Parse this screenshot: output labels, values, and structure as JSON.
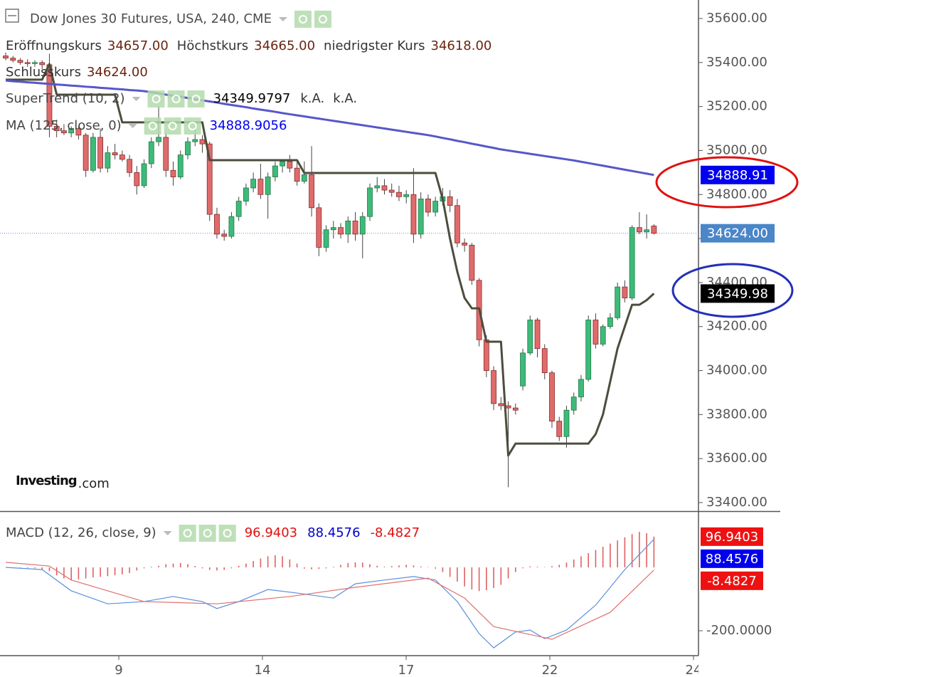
{
  "logo": {
    "text": "Investing",
    "suffix": ".com"
  },
  "chart_data": [
    {
      "type": "candlestick",
      "title": "Dow Jones 30 Futures, USA, 240, CME",
      "up_color": "#3dbb78",
      "down_color": "#e06b6b",
      "last_price_color": "#4a86c8",
      "ohlc_labels": [
        {
          "label": "Eröffnungskurs",
          "value_label": "34657.00"
        },
        {
          "label": "Höchstkurs",
          "value_label": "34665.00"
        },
        {
          "label": "niedrigster Kurs",
          "value_label": "34618.00"
        },
        {
          "label": "Schlusskurs",
          "value_label": "34624.00"
        }
      ],
      "x": [
        0,
        1,
        2,
        3,
        4,
        5,
        6,
        7,
        8,
        9,
        10,
        11,
        12,
        13,
        14,
        15,
        16,
        17,
        18,
        19,
        20,
        21,
        22,
        23,
        24,
        25,
        26,
        27,
        28,
        29,
        30,
        31,
        32,
        33,
        34,
        35,
        36,
        37,
        38,
        39,
        40,
        41,
        42,
        43,
        44,
        45,
        46,
        47,
        48,
        49,
        50,
        51,
        52,
        53,
        54,
        55,
        56,
        57,
        58,
        59,
        60,
        61,
        62,
        63,
        64,
        65,
        66,
        67,
        68,
        69,
        70,
        71,
        72,
        73,
        74,
        75,
        76,
        77,
        78,
        79,
        80,
        81,
        82,
        83,
        84,
        85,
        86,
        87,
        88,
        89
      ],
      "open": [
        35430,
        35420,
        35410,
        35400,
        35395,
        35400,
        35390,
        35110,
        35090,
        35080,
        35100,
        35070,
        34910,
        35060,
        34920,
        34990,
        34980,
        34960,
        34900,
        34840,
        34940,
        35040,
        35060,
        34910,
        34880,
        34980,
        35040,
        35050,
        35030,
        34710,
        34620,
        34610,
        34700,
        34770,
        34830,
        34870,
        34800,
        34880,
        34930,
        34950,
        34920,
        34860,
        34890,
        34740,
        34560,
        34640,
        34650,
        34620,
        34680,
        34620,
        34700,
        34830,
        34840,
        34820,
        34810,
        34790,
        34800,
        34620,
        34780,
        34720,
        34770,
        34790,
        34750,
        34580,
        34570,
        34410,
        34140,
        34000,
        33850,
        33840,
        33830,
        33930,
        34080,
        34230,
        34100,
        33990,
        33770,
        33700,
        33820,
        33880,
        33960,
        34230,
        34120,
        34200,
        34240,
        34380,
        34330,
        34650,
        34630,
        34657
      ],
      "high": [
        35445,
        35430,
        35420,
        35415,
        35410,
        35410,
        35440,
        35140,
        35120,
        35110,
        35110,
        35080,
        35080,
        35100,
        35020,
        35030,
        35000,
        34980,
        34930,
        34960,
        35060,
        35200,
        35080,
        34950,
        35000,
        35060,
        35110,
        35070,
        35040,
        34740,
        34640,
        34720,
        34790,
        34850,
        34900,
        34940,
        34900,
        34950,
        34960,
        34980,
        34950,
        34950,
        35020,
        34760,
        34660,
        34680,
        34670,
        34700,
        34720,
        34720,
        34850,
        34880,
        34870,
        34850,
        34840,
        34820,
        34920,
        34810,
        34800,
        34790,
        34830,
        34820,
        34780,
        34600,
        34580,
        34420,
        34160,
        34020,
        33880,
        33860,
        33850,
        34100,
        34250,
        34240,
        34120,
        34000,
        33790,
        33840,
        33900,
        33980,
        34250,
        34260,
        34210,
        34260,
        34400,
        34410,
        34660,
        34720,
        34710,
        34665
      ],
      "low": [
        35410,
        35400,
        35390,
        35380,
        35380,
        35370,
        35060,
        35060,
        35070,
        35060,
        35050,
        34880,
        34900,
        34900,
        34900,
        34960,
        34950,
        34880,
        34800,
        34830,
        34920,
        35020,
        34880,
        34840,
        34870,
        34960,
        35020,
        34990,
        34680,
        34600,
        34590,
        34600,
        34680,
        34750,
        34810,
        34780,
        34690,
        34860,
        34900,
        34900,
        34840,
        34850,
        34700,
        34520,
        34540,
        34600,
        34600,
        34580,
        34590,
        34510,
        34680,
        34810,
        34800,
        34790,
        34770,
        34760,
        34580,
        34600,
        34700,
        34700,
        34750,
        34720,
        34560,
        34540,
        34390,
        34110,
        33970,
        33820,
        33820,
        33470,
        33800,
        33910,
        34070,
        34060,
        33960,
        33740,
        33680,
        33650,
        33800,
        33860,
        33950,
        34100,
        34110,
        34190,
        34230,
        34310,
        34320,
        34620,
        34600,
        34618
      ],
      "close": [
        35420,
        35410,
        35400,
        35395,
        35400,
        35390,
        35110,
        35090,
        35080,
        35100,
        35070,
        34910,
        35060,
        34920,
        34990,
        34980,
        34960,
        34900,
        34840,
        34940,
        35040,
        35060,
        34910,
        34880,
        34980,
        35040,
        35050,
        35030,
        34710,
        34620,
        34610,
        34700,
        34770,
        34830,
        34870,
        34800,
        34880,
        34930,
        34950,
        34920,
        34860,
        34890,
        34740,
        34560,
        34640,
        34650,
        34620,
        34680,
        34620,
        34700,
        34830,
        34840,
        34820,
        34810,
        34790,
        34800,
        34620,
        34780,
        34720,
        34770,
        34790,
        34750,
        34580,
        34570,
        34410,
        34140,
        34000,
        33850,
        33840,
        33830,
        33820,
        34080,
        34230,
        34100,
        33990,
        33770,
        33700,
        33820,
        33880,
        33960,
        34230,
        34120,
        34200,
        34240,
        34380,
        34330,
        34650,
        34630,
        34640,
        34624
      ],
      "series": [
        {
          "name": "SuperTrend (10, 2)",
          "color": "#4d4d3d",
          "tag_color": "#000000",
          "values": [
            35322,
            35322,
            35322,
            35322,
            35322,
            35322,
            35393,
            35254,
            35254,
            35254,
            35254,
            35254,
            35254,
            35254,
            35254,
            35254,
            35128,
            35128,
            35128,
            35128,
            35128,
            35128,
            35128,
            35128,
            35128,
            35128,
            35128,
            35128,
            34956,
            34956,
            34956,
            34956,
            34956,
            34956,
            34956,
            34956,
            34956,
            34956,
            34956,
            34956,
            34956,
            34898,
            34898,
            34898,
            34898,
            34898,
            34898,
            34898,
            34898,
            34898,
            34898,
            34898,
            34898,
            34898,
            34898,
            34898,
            34898,
            34898,
            34898,
            34898,
            34780,
            34600,
            34450,
            34330,
            34283,
            34283,
            34131,
            34131,
            34131,
            33614,
            33668,
            33668,
            33668,
            33668,
            33668,
            33668,
            33668,
            33668,
            33668,
            33668,
            33668,
            33711,
            33800,
            33950,
            34100,
            34200,
            34299,
            34299,
            34320,
            34349.9797
          ],
          "extra_labels": [
            "k.A.",
            "k.A."
          ],
          "last_label": "34349.98"
        },
        {
          "name": "MA (125, close, 0)",
          "color": "#5757c9",
          "tag_color": "#0000ee",
          "values": [
            35318,
            35315,
            35313,
            35310,
            35308,
            35305,
            35303,
            35300,
            35298,
            35295,
            35293,
            35290,
            35288,
            35285,
            35283,
            35280,
            35278,
            35275,
            35273,
            35270,
            35265,
            35260,
            35254,
            35249,
            35244,
            35239,
            35233,
            35228,
            35223,
            35218,
            35212,
            35207,
            35202,
            35197,
            35191,
            35186,
            35181,
            35176,
            35170,
            35165,
            35160,
            35155,
            35150,
            35145,
            35140,
            35135,
            35130,
            35125,
            35120,
            35115,
            35110,
            35105,
            35100,
            35095,
            35090,
            35085,
            35080,
            35075,
            35070,
            35064,
            35057,
            35051,
            35044,
            35038,
            35031,
            35025,
            35018,
            35012,
            35005,
            35000,
            34995,
            34990,
            34985,
            34980,
            34975,
            34970,
            34965,
            34960,
            34955,
            34949,
            34943,
            34937,
            34931,
            34925,
            34919,
            34913,
            34907,
            34901,
            34895,
            34888.9056
          ],
          "last_label": "34888.91"
        }
      ],
      "xlim": [
        -0.781,
        95.117
      ],
      "xticks": [
        {
          "value": 15.53,
          "label": "9"
        },
        {
          "value": 35.25,
          "label": "14"
        },
        {
          "value": 54.98,
          "label": "17"
        },
        {
          "value": 74.71,
          "label": "22"
        },
        {
          "value": 94.43,
          "label": "24"
        }
      ],
      "ylim": [
        33361.2,
        35684.1
      ],
      "yticks": [
        {
          "value": 35600,
          "label": "35600.00"
        },
        {
          "value": 35400,
          "label": "35400.00"
        },
        {
          "value": 35200,
          "label": "35200.00"
        },
        {
          "value": 35000,
          "label": "35000.00"
        },
        {
          "value": 34800,
          "label": "34800.00"
        },
        {
          "value": 34600,
          "label": "34600.00"
        },
        {
          "value": 34400,
          "label": "34400.00"
        },
        {
          "value": 34200,
          "label": "34200.00"
        },
        {
          "value": 34000,
          "label": "34000.00"
        },
        {
          "value": 33800,
          "label": "33800.00"
        },
        {
          "value": 33600,
          "label": "33600.00"
        },
        {
          "value": 33400,
          "label": "33400.00"
        }
      ]
    },
    {
      "type": "macd",
      "title": "MACD (12, 26, close, 9)",
      "histogram": {
        "color": "#e06060",
        "tag_color": "#ee1111",
        "values": [
          0,
          0,
          -1,
          -2,
          -3,
          -6,
          -12,
          -25,
          -35,
          -40,
          -38,
          -35,
          -32,
          -30,
          -28,
          -25,
          -22,
          -18,
          -10,
          -3,
          2,
          5,
          10,
          12,
          14,
          10,
          4,
          -3,
          -8,
          -10,
          -8,
          -3,
          5,
          12,
          20,
          28,
          35,
          38,
          35,
          25,
          12,
          -4,
          -6,
          -5,
          -3,
          2,
          8,
          14,
          16,
          15,
          10,
          5,
          2,
          4,
          6,
          8,
          6,
          3,
          1,
          -4,
          -15,
          -30,
          -45,
          -60,
          -70,
          -75,
          -72,
          -65,
          -55,
          -35,
          -15,
          -3,
          3,
          2,
          1,
          4,
          8,
          15,
          25,
          35,
          45,
          55,
          65,
          75,
          85,
          95,
          105,
          112,
          108,
          96.9403
        ]
      },
      "series": [
        {
          "color": "#5b8fde",
          "tag_color": "#0000ee",
          "x": [
            0,
            5,
            9,
            14,
            19,
            23,
            27,
            29,
            32,
            36,
            40,
            45,
            48,
            52,
            56,
            59,
            62,
            65,
            67,
            70,
            72,
            74,
            77,
            81,
            85,
            89
          ],
          "values": [
            0,
            -7,
            -74,
            -115,
            -108,
            -92,
            -108,
            -130,
            -108,
            -70,
            -81,
            -97,
            -52,
            -40,
            -29,
            -40,
            -108,
            -209,
            -254,
            -204,
            -198,
            -225,
            -198,
            -119,
            -7,
            88.4576
          ]
        },
        {
          "color": "#e07070",
          "tag_color": "#ee1111",
          "x": [
            0,
            6,
            9,
            19,
            29,
            39,
            48,
            58,
            63,
            67,
            75,
            83,
            89
          ],
          "values": [
            16,
            4,
            -40,
            -108,
            -115,
            -92,
            -63,
            -34,
            -97,
            -187,
            -227,
            -142,
            -8.4827
          ]
        }
      ],
      "ylim": [
        -276.4,
        173.0
      ],
      "yticks": [
        {
          "value": -200,
          "label": "-200.0000"
        }
      ]
    }
  ]
}
